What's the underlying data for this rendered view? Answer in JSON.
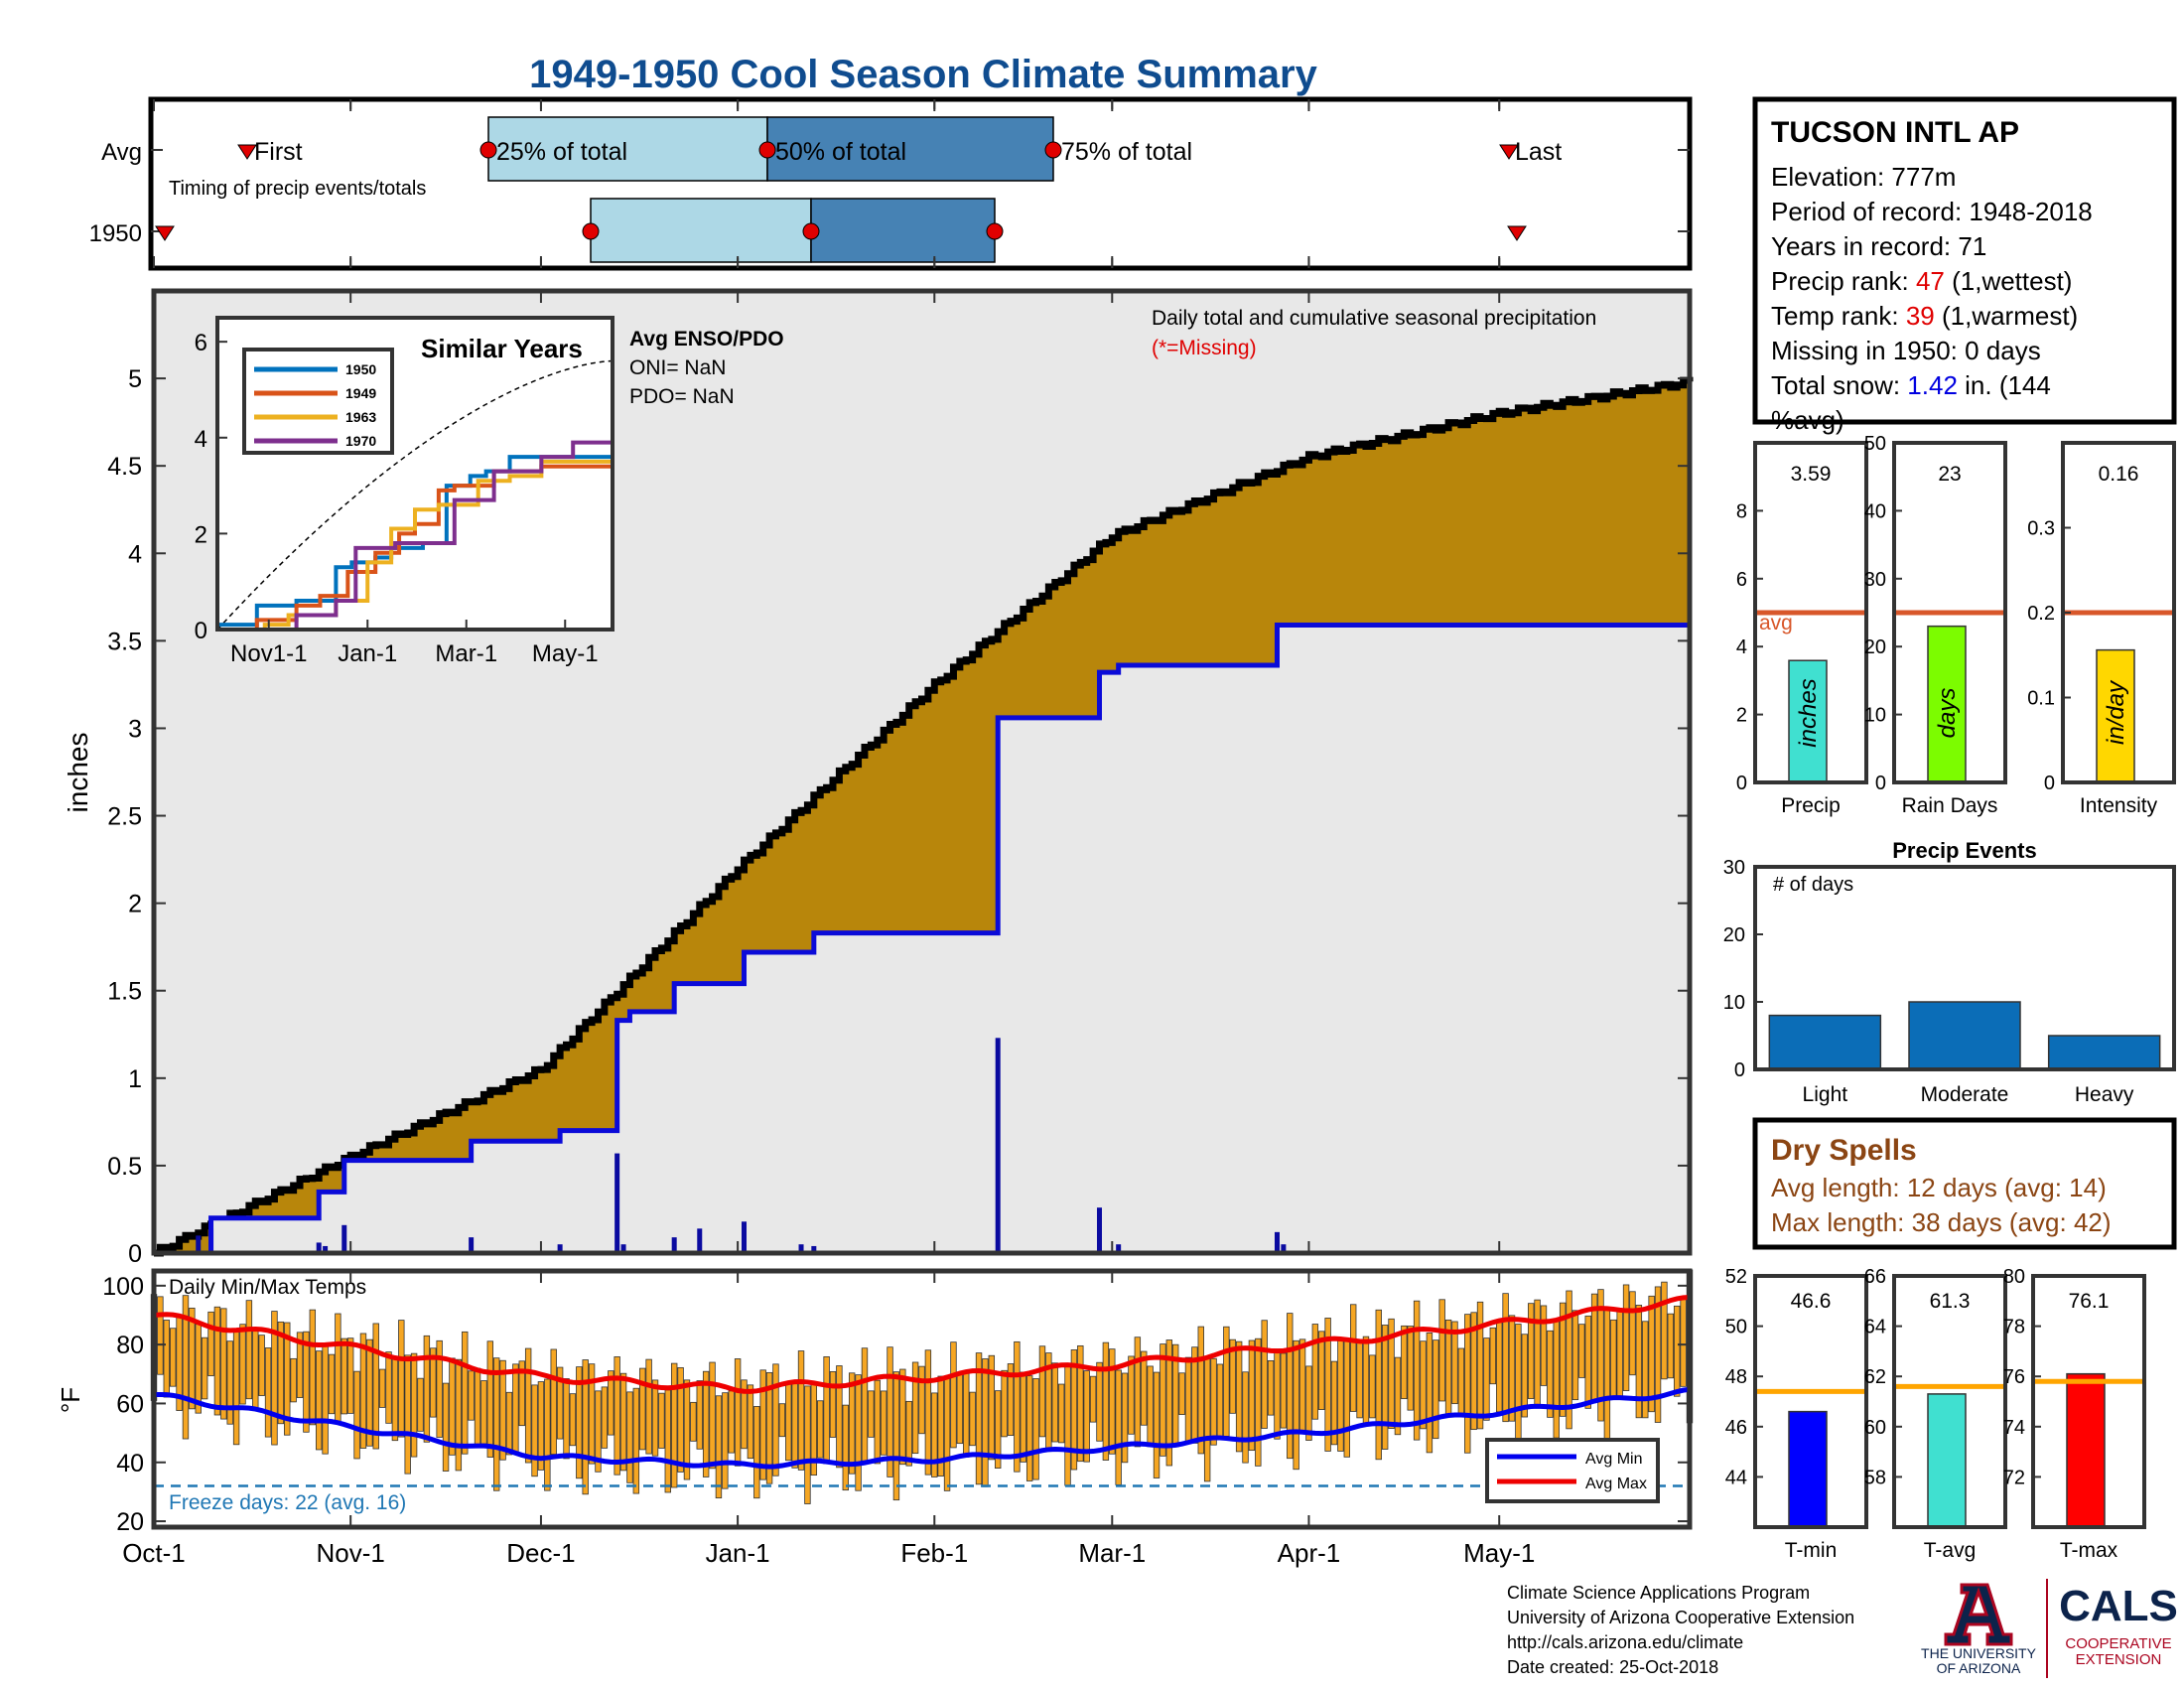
{
  "title": "1949-1950 Cool Season Climate Summary",
  "colors": {
    "title": "#0f4c8f",
    "cum_fill": "#b8860b",
    "avg_line": "#0b0bd8",
    "bar_blue": "#0a0aa0",
    "box_light": "#add8e6",
    "box_dark": "#4682b4",
    "avg_ref": "#d8572a",
    "temp_bar": "#f5a623",
    "event_bar": "#0b6db7",
    "freeze": "#1f77b4",
    "dry": "#8b4513",
    "red": "#e00000",
    "blue_text": "#0000e0"
  },
  "timing": {
    "row_labels": [
      "Avg",
      "1950"
    ],
    "avg_labels": [
      "First",
      "25% of total",
      "50% of total",
      "75% of total",
      "Last"
    ],
    "note": "Timing of precip events/totals"
  },
  "station": {
    "name": "TUCSON INTL AP",
    "elevation": "Elevation: 777m",
    "period": "Period of record: 1948-2018",
    "years": "Years in record: 71",
    "precip_rank_pre": "Precip rank: ",
    "precip_rank_val": "47",
    "precip_rank_post": " (1,wettest)",
    "temp_rank_pre": "Temp rank: ",
    "temp_rank_val": "39",
    "temp_rank_post": " (1,warmest)",
    "missing": "Missing in 1950: 0 days",
    "snow_pre": "Total snow: ",
    "snow_val": "1.42",
    "snow_post": " in. (144",
    "snow_post2": "%avg)"
  },
  "main_panel": {
    "ylabel": "inches",
    "legend_line1": "Daily total and cumulative seasonal precipitation",
    "legend_line2": "(*=Missing)",
    "enso_title": "Avg ENSO/PDO",
    "oni": "ONI= NaN",
    "pdo": "PDO= NaN"
  },
  "inset": {
    "title": "Similar Years",
    "xticks": [
      "Nov1-1",
      "Jan-1",
      "Mar-1",
      "May-1"
    ],
    "yticks": [
      "0",
      "2",
      "4",
      "6"
    ],
    "legend": [
      "1950",
      "1949",
      "1963",
      "1970"
    ],
    "legend_colors": [
      "#0072bd",
      "#d95319",
      "#edb120",
      "#7e2f8e"
    ]
  },
  "temp_panel": {
    "title": "Daily Min/Max Temps",
    "ylabel": "°F",
    "freeze_text": "Freeze days: 22 (avg. 16)",
    "legend": [
      "Avg Min",
      "Avg Max"
    ],
    "yticks": [
      "20",
      "40",
      "60",
      "80",
      "100"
    ]
  },
  "x_months": [
    "Oct-1",
    "Nov-1",
    "Dec-1",
    "Jan-1",
    "Feb-1",
    "Mar-1",
    "Apr-1",
    "May-1"
  ],
  "small_precip": [
    {
      "value_label": "3.59",
      "value": 3.59,
      "avg": 5.0,
      "unit": "inches",
      "xlabel": "Precip",
      "ymax": 10,
      "yticks": [
        "0",
        "2",
        "4",
        "6",
        "8"
      ],
      "color": "#40e0d0",
      "avg_text": "avg"
    },
    {
      "value_label": "23",
      "value": 23,
      "avg": 25,
      "unit": "days",
      "xlabel": "Rain Days",
      "ymax": 50,
      "yticks": [
        "0",
        "10",
        "20",
        "30",
        "40",
        "50"
      ],
      "color": "#7cfc00"
    },
    {
      "value_label": "0.16",
      "value": 0.156,
      "avg": 0.2,
      "unit": "in/day",
      "xlabel": "Intensity",
      "ymax": 0.4,
      "yticks": [
        "0",
        "0.1",
        "0.2",
        "0.3"
      ],
      "color": "#ffd700"
    }
  ],
  "events": {
    "title": "Precip Events",
    "note": "# of days",
    "categories": [
      "Light",
      "Moderate",
      "Heavy"
    ],
    "values": [
      8,
      10,
      5
    ],
    "yticks": [
      "0",
      "10",
      "20",
      "30"
    ]
  },
  "dry_spells": {
    "title": "Dry Spells",
    "avg_length": "Avg length: 12 days (avg: 14)",
    "max_length": "Max length: 38 days (avg: 42)"
  },
  "small_temp": [
    {
      "value_label": "46.6",
      "value": 46.6,
      "avg": 47.4,
      "xlabel": "T-min",
      "ymin": 42.0,
      "ymax": 52,
      "yticks": [
        "44",
        "46",
        "48",
        "50",
        "52"
      ],
      "color": "#0000ff"
    },
    {
      "value_label": "61.3",
      "value": 61.3,
      "avg": 61.6,
      "xlabel": "T-avg",
      "ymin": 56.0,
      "ymax": 66,
      "yticks": [
        "58",
        "60",
        "62",
        "64",
        "66"
      ],
      "color": "#40e0d0"
    },
    {
      "value_label": "76.1",
      "value": 76.1,
      "avg": 75.8,
      "xlabel": "T-max",
      "ymin": 70.0,
      "ymax": 80,
      "yticks": [
        "72",
        "74",
        "76",
        "78",
        "80"
      ],
      "color": "#ff0000"
    }
  ],
  "footer": {
    "line1": "Climate Science Applications Program",
    "line2": "University of Arizona Cooperative Extension",
    "line3": "http://cals.arizona.edu/climate",
    "line4": " Date created: 25-Oct-2018",
    "ua_line1": "THE UNIVERSITY",
    "ua_line2": "OF ARIZONA",
    "cals": "CALS",
    "coop1": "COOPERATIVE",
    "coop2": "EXTENSION"
  },
  "chart_data": {
    "type": "area",
    "title": "1949-1950 Cool Season Climate Summary",
    "ylabel": "inches",
    "ylim": [
      0,
      5.5
    ],
    "x_range": [
      "Oct-1",
      "May-31"
    ],
    "cumulative_1950": [
      [
        "Oct-1",
        0
      ],
      [
        "Oct-10",
        0.2
      ],
      [
        "Oct-25",
        0.2
      ],
      [
        "Oct-27",
        0.35
      ],
      [
        "Oct-31",
        0.53
      ],
      [
        "Nov-19",
        0.53
      ],
      [
        "Nov-20",
        0.64
      ],
      [
        "Dec-3",
        0.64
      ],
      [
        "Dec-4",
        0.7
      ],
      [
        "Dec-12",
        0.7
      ],
      [
        "Dec-13",
        1.33
      ],
      [
        "Dec-15",
        1.38
      ],
      [
        "Dec-21",
        1.38
      ],
      [
        "Dec-22",
        1.54
      ],
      [
        "Jan-1",
        1.54
      ],
      [
        "Jan-2",
        1.72
      ],
      [
        "Jan-12",
        1.72
      ],
      [
        "Jan-13",
        1.83
      ],
      [
        "Feb-10",
        1.83
      ],
      [
        "Feb-11",
        3.06
      ],
      [
        "Feb-26",
        3.06
      ],
      [
        "Feb-27",
        3.32
      ],
      [
        "Mar-2",
        3.36
      ],
      [
        "Mar-26",
        3.36
      ],
      [
        "Mar-27",
        3.59
      ],
      [
        "May-31",
        3.59
      ]
    ],
    "cumulative_average": [
      [
        "Oct-1",
        0
      ],
      [
        "Nov-1",
        0.55
      ],
      [
        "Dec-1",
        1.05
      ],
      [
        "Jan-1",
        2.2
      ],
      [
        "Feb-1",
        3.25
      ],
      [
        "Mar-1",
        4.1
      ],
      [
        "Apr-1",
        4.55
      ],
      [
        "May-1",
        4.8
      ],
      [
        "May-31",
        4.98
      ]
    ],
    "daily_totals_1950": [
      [
        "Oct-8",
        0.1
      ],
      [
        "Oct-10",
        0.14
      ],
      [
        "Oct-27",
        0.06
      ],
      [
        "Oct-28",
        0.04
      ],
      [
        "Oct-31",
        0.16
      ],
      [
        "Nov-20",
        0.09
      ],
      [
        "Dec-4",
        0.05
      ],
      [
        "Dec-13",
        0.57
      ],
      [
        "Dec-14",
        0.05
      ],
      [
        "Dec-22",
        0.09
      ],
      [
        "Dec-26",
        0.14
      ],
      [
        "Jan-2",
        0.18
      ],
      [
        "Jan-11",
        0.05
      ],
      [
        "Jan-13",
        0.04
      ],
      [
        "Feb-11",
        1.23
      ],
      [
        "Feb-27",
        0.26
      ],
      [
        "Mar-2",
        0.05
      ],
      [
        "Mar-27",
        0.12
      ],
      [
        "Mar-28",
        0.05
      ]
    ],
    "temps": {
      "ylim": [
        18,
        105
      ],
      "avg_min_key": [
        [
          "Oct-1",
          63
        ],
        [
          "Nov-1",
          52
        ],
        [
          "Dec-1",
          42
        ],
        [
          "Jan-1",
          39
        ],
        [
          "Feb-1",
          41
        ],
        [
          "Mar-1",
          45
        ],
        [
          "Apr-1",
          50
        ],
        [
          "May-1",
          57
        ],
        [
          "May-31",
          64
        ]
      ],
      "avg_max_key": [
        [
          "Oct-1",
          90
        ],
        [
          "Nov-1",
          79
        ],
        [
          "Dec-1",
          69
        ],
        [
          "Jan-1",
          65
        ],
        [
          "Feb-1",
          69
        ],
        [
          "Mar-1",
          73
        ],
        [
          "Apr-1",
          80
        ],
        [
          "May-1",
          87
        ],
        [
          "May-31",
          95
        ]
      ],
      "freeze_line": 32
    }
  }
}
